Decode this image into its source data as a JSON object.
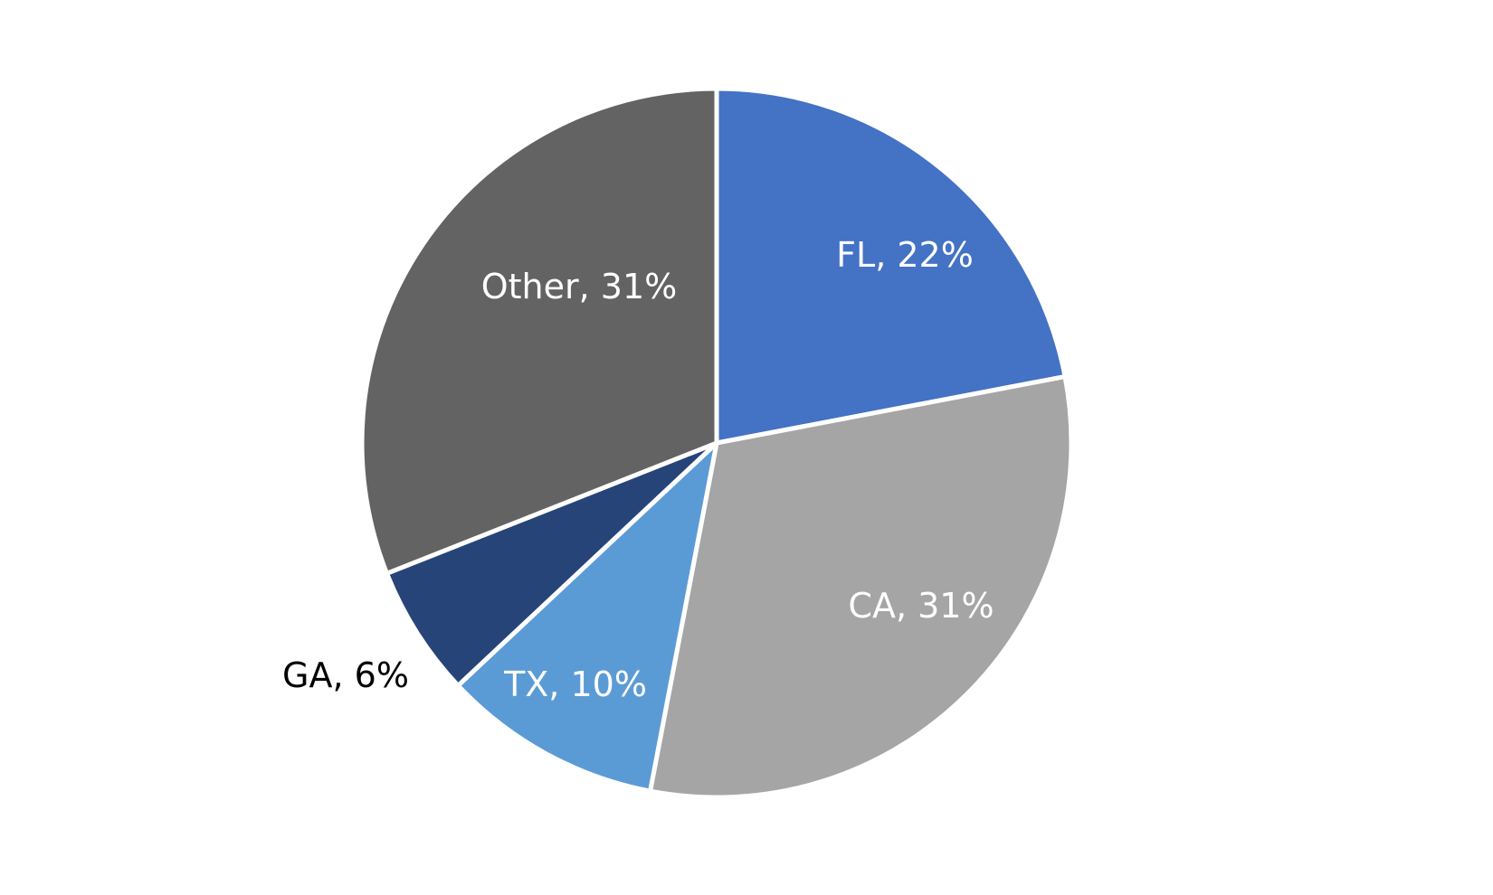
{
  "chart_data": {
    "type": "pie",
    "title": "",
    "categories": [
      "FL",
      "CA",
      "TX",
      "GA",
      "Other"
    ],
    "values": [
      22,
      31,
      10,
      6,
      31
    ],
    "unit": "%",
    "colors": [
      "#4472C4",
      "#A5A5A5",
      "#5B9BD5",
      "#264478",
      "#636363"
    ],
    "labels": [
      "FL, 22%",
      "CA, 31%",
      "TX, 10%",
      "GA, 6%",
      "Other, 31%"
    ],
    "label_colors": [
      "#ffffff",
      "#ffffff",
      "#ffffff",
      "#000000",
      "#ffffff"
    ],
    "start_angle_deg": 0,
    "direction": "clockwise",
    "legend": "none",
    "slice_border_color": "#ffffff"
  }
}
